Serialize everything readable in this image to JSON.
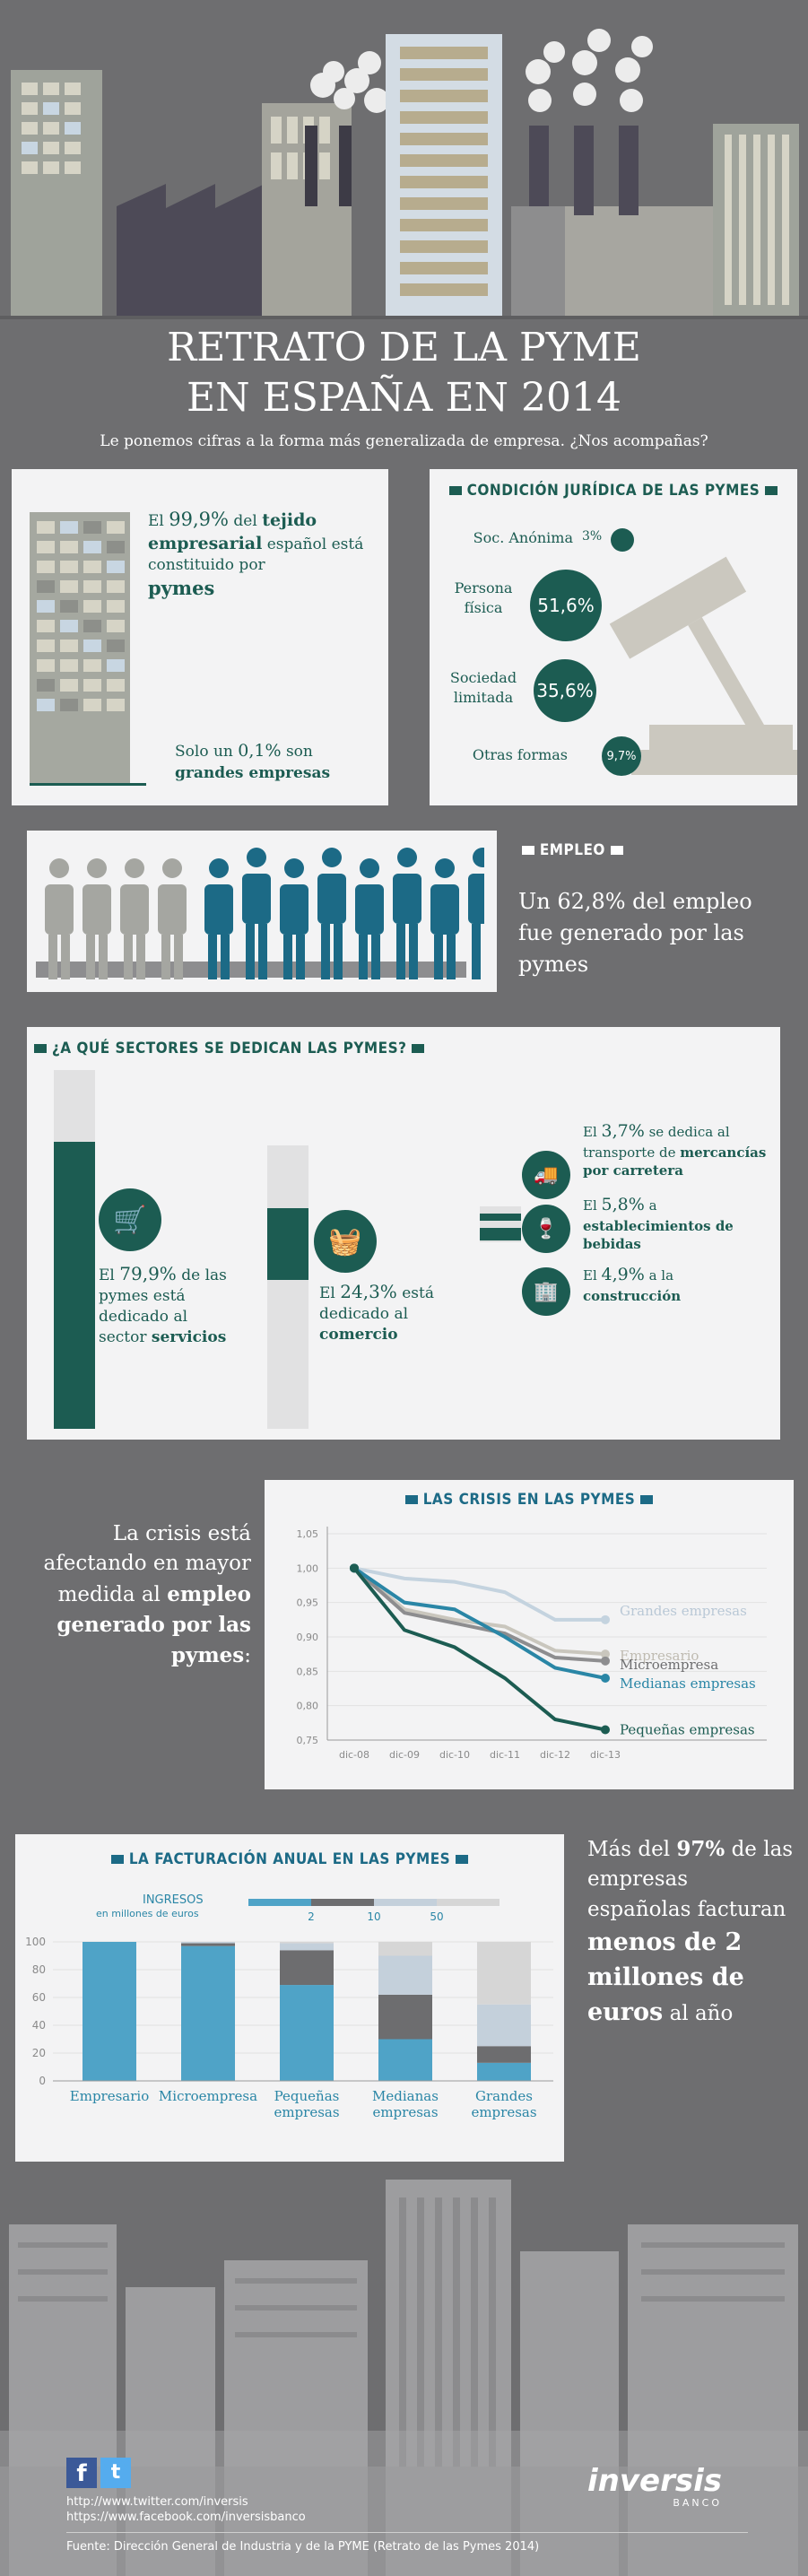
{
  "header": {
    "title_line1": "RETRATO DE LA PYME",
    "title_line2": "EN ESPAÑA EN 2014",
    "subtitle": "Le ponemos cifras a la forma más generalizada de empresa. ¿Nos acompañas?"
  },
  "tejido": {
    "p1": "El",
    "pct": "99,9%",
    "p2": "del",
    "b1": "tejido empresarial",
    "p3": "español está constituido por",
    "b2": "pymes",
    "s1": "Solo un",
    "spct": "0,1%",
    "s2": "son",
    "sb": "grandes empresas"
  },
  "juridica": {
    "title": "CONDICIÓN JURÍDICA DE LAS PYMES",
    "items": [
      {
        "label": "Soc. Anónima",
        "value": "3%"
      },
      {
        "label": "Persona física",
        "value": "51,6%"
      },
      {
        "label": "Sociedad limitada",
        "value": "35,6%"
      },
      {
        "label": "Otras formas",
        "value": "9,7%"
      }
    ]
  },
  "empleo": {
    "title": "EMPLEO",
    "text": "Un 62,8% del empleo fue generado por las pymes"
  },
  "sectores": {
    "title": "¿A QUÉ SECTORES SE DEDICAN LAS PYMES?",
    "servicios": {
      "p1": "El",
      "pct": "79,9%",
      "p2": "de las pymes está dedicado al sector",
      "b": "servicios"
    },
    "comercio": {
      "p1": "El",
      "pct": "24,3%",
      "p2": "está dedicado al",
      "b": "comercio"
    },
    "transporte": {
      "p1": "El",
      "pct": "3,7%",
      "p2": "se dedica al transporte de",
      "b": "mercancías por carretera"
    },
    "bebidas": {
      "p1": "El",
      "pct": "5,8%",
      "p2": "a",
      "b": "establecimientos de bebidas"
    },
    "construccion": {
      "p1": "El",
      "pct": "4,9%",
      "p2": "a la",
      "b": "construcción"
    }
  },
  "crisis_text": {
    "t1": "La crisis está afectando en mayor medida al",
    "b": "empleo generado por las pymes",
    "t2": ":"
  },
  "chart_data": [
    {
      "type": "line",
      "title": "LAS CRISIS EN LAS PYMES",
      "x": [
        "dic-08",
        "dic-09",
        "dic-10",
        "dic-11",
        "dic-12",
        "dic-13"
      ],
      "yticks": [
        "1,05",
        "1,00",
        "0,95",
        "0,90",
        "0,85",
        "0,80",
        "0,75"
      ],
      "ylim": [
        0.75,
        1.05
      ],
      "series": [
        {
          "name": "Grandes empresas",
          "color": "#c4d3df",
          "values": [
            1.0,
            0.985,
            0.98,
            0.965,
            0.925,
            0.925
          ]
        },
        {
          "name": "Empresario",
          "color": "#c9c6bd",
          "values": [
            1.0,
            0.94,
            0.925,
            0.915,
            0.88,
            0.875
          ]
        },
        {
          "name": "Microempresa",
          "color": "#8d8d8f",
          "values": [
            1.0,
            0.935,
            0.92,
            0.905,
            0.87,
            0.865
          ]
        },
        {
          "name": "Medianas empresas",
          "color": "#2a86a6",
          "values": [
            1.0,
            0.95,
            0.94,
            0.9,
            0.855,
            0.84
          ]
        },
        {
          "name": "Pequeñas empresas",
          "color": "#1c5c52",
          "values": [
            1.0,
            0.91,
            0.885,
            0.84,
            0.78,
            0.765
          ]
        }
      ]
    },
    {
      "type": "bar",
      "title": "LA FACTURACIÓN ANUAL EN LAS PYMES",
      "legend_title": "INGRESOS",
      "legend_unit": "en millones de euros",
      "legend_ticks": [
        "2",
        "10",
        "50"
      ],
      "categories": [
        "Empresario",
        "Microempresa",
        "Pequeñas empresas",
        "Medianas empresas",
        "Grandes empresas"
      ],
      "yticks": [
        "100",
        "80",
        "60",
        "40",
        "20",
        "0"
      ],
      "ylim": [
        0,
        100
      ],
      "series": [
        {
          "color": "#4fa3c7",
          "values": [
            100,
            97,
            69,
            30,
            13
          ]
        },
        {
          "color": "#6d6d6f",
          "values": [
            0,
            2,
            25,
            32,
            12
          ]
        },
        {
          "color": "#c4d0db",
          "values": [
            0,
            1,
            5,
            28,
            30
          ]
        },
        {
          "color": "#d6d6d6",
          "values": [
            0,
            0,
            1,
            10,
            45
          ]
        }
      ]
    }
  ],
  "facturacion_text": {
    "t1": "Más del",
    "pct": "97%",
    "t2": "de las empresas españolas facturan",
    "b": "menos de 2 millones de euros",
    "t3": "al año"
  },
  "footer": {
    "twitter": "http://www.twitter.com/inversis",
    "facebook": "https://www.facebook.com/inversisbanco",
    "brand": "inversis",
    "brand_sub": "BANCO",
    "source": "Fuente: Dirección General de Industria y de la PYME (Retrato de las Pymes 2014)"
  }
}
